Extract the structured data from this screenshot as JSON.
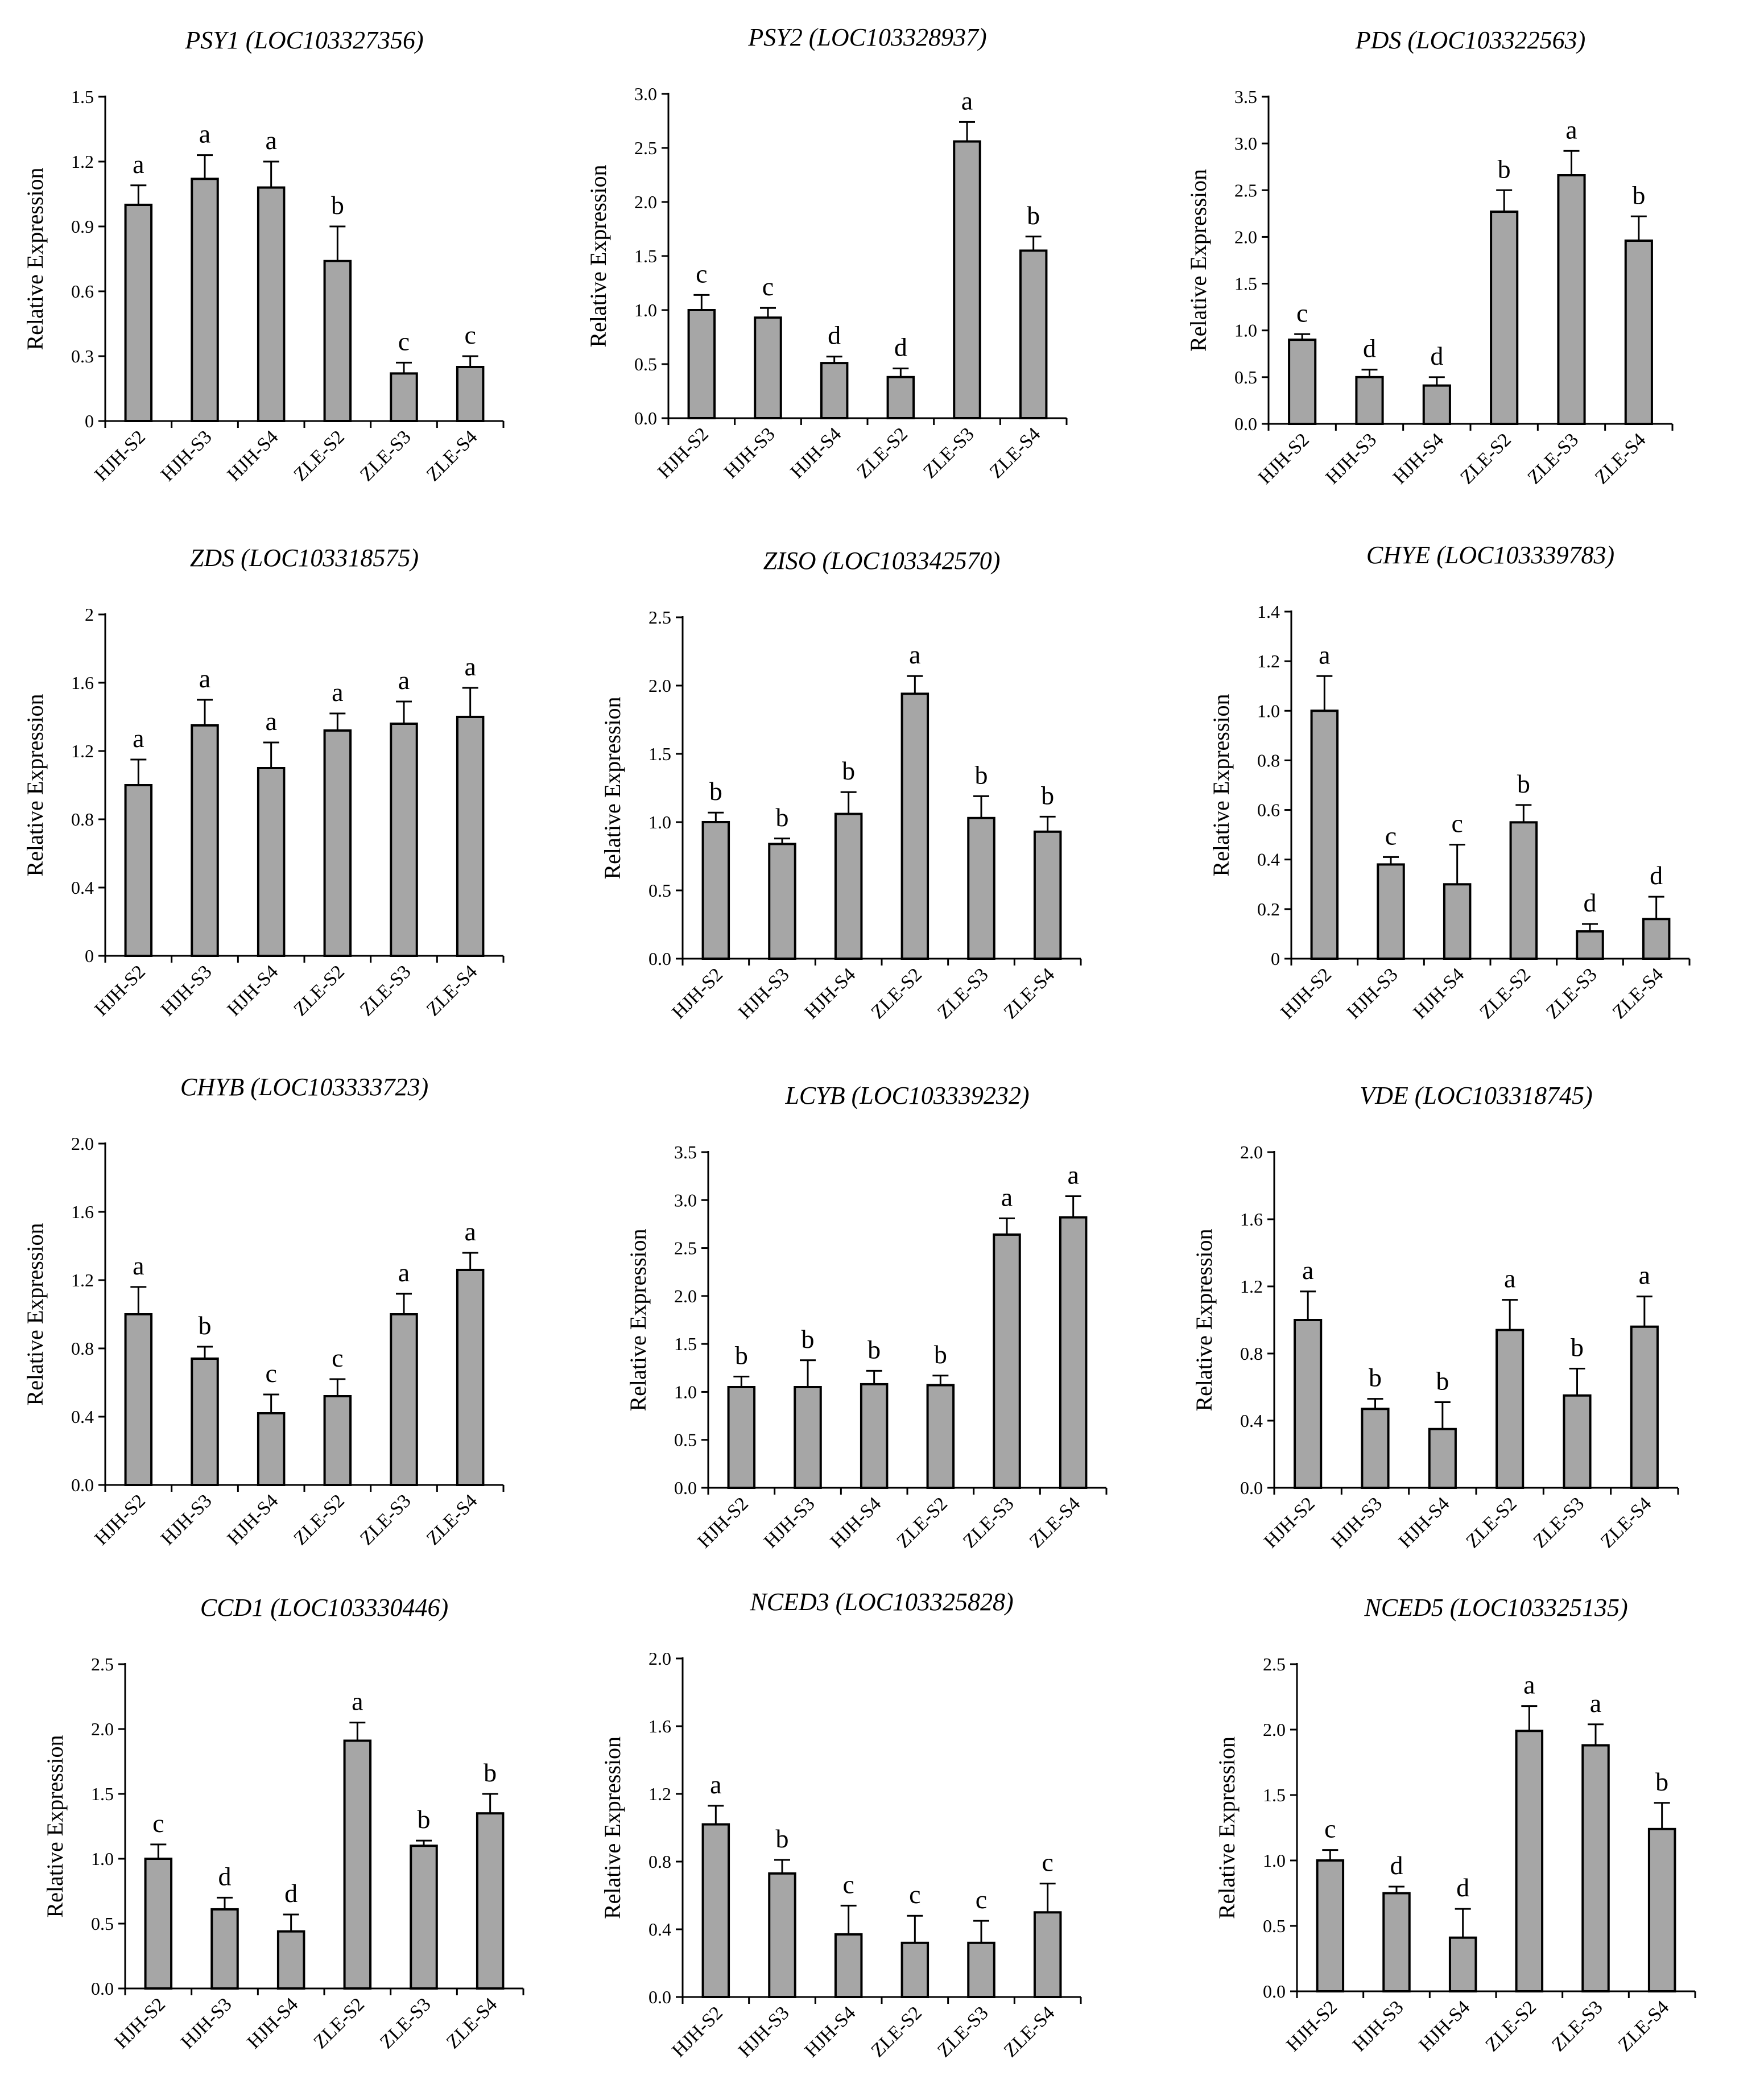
{
  "figure": {
    "background": "#ffffff",
    "bar_fill": "#a6a6a6",
    "stroke": "#000000"
  },
  "chart_data": [
    {
      "type": "bar",
      "title": "PSY1 (LOC103327356)",
      "ylabel": "Relative Expression",
      "ylim": [
        0,
        1.5
      ],
      "yticks": [
        "0",
        "0.3",
        "0.6",
        "0.9",
        "1.2",
        "1.5"
      ],
      "categories": [
        "HJH-S2",
        "HJH-S3",
        "HJH-S4",
        "ZLE-S2",
        "ZLE-S3",
        "ZLE-S4"
      ],
      "values": [
        1.0,
        1.12,
        1.08,
        0.74,
        0.22,
        0.25
      ],
      "errors": [
        0.09,
        0.11,
        0.12,
        0.16,
        0.05,
        0.05
      ],
      "letters": [
        "a",
        "a",
        "a",
        "b",
        "c",
        "c"
      ]
    },
    {
      "type": "bar",
      "title": "PSY2  (LOC103328937)",
      "ylabel": "Relative Expression",
      "ylim": [
        0,
        3.0
      ],
      "yticks": [
        "0.0",
        "0.5",
        "1.0",
        "1.5",
        "2.0",
        "2.5",
        "3.0"
      ],
      "categories": [
        "HJH-S2",
        "HJH-S3",
        "HJH-S4",
        "ZLE-S2",
        "ZLE-S3",
        "ZLE-S4"
      ],
      "values": [
        1.0,
        0.93,
        0.51,
        0.38,
        2.56,
        1.55
      ],
      "errors": [
        0.14,
        0.09,
        0.06,
        0.08,
        0.18,
        0.13
      ],
      "letters": [
        "c",
        "c",
        "d",
        "d",
        "a",
        "b"
      ]
    },
    {
      "type": "bar",
      "title": "PDS (LOC103322563)",
      "ylabel": "Relative Expression",
      "ylim": [
        0,
        3.5
      ],
      "yticks": [
        "0.0",
        "0.5",
        "1.0",
        "1.5",
        "2.0",
        "2.5",
        "3.0",
        "3.5"
      ],
      "categories": [
        "HJH-S2",
        "HJH-S3",
        "HJH-S4",
        "ZLE-S2",
        "ZLE-S3",
        "ZLE-S4"
      ],
      "values": [
        0.9,
        0.5,
        0.41,
        2.27,
        2.66,
        1.96
      ],
      "errors": [
        0.06,
        0.08,
        0.09,
        0.23,
        0.26,
        0.26
      ],
      "letters": [
        "c",
        "d",
        "d",
        "b",
        "a",
        "b"
      ]
    },
    {
      "type": "bar",
      "title": "ZDS (LOC103318575)",
      "ylabel": "Relative Expression",
      "ylim": [
        0,
        2
      ],
      "yticks": [
        "0",
        "0.4",
        "0.8",
        "1.2",
        "1.6",
        "2"
      ],
      "categories": [
        "HJH-S2",
        "HJH-S3",
        "HJH-S4",
        "ZLE-S2",
        "ZLE-S3",
        "ZLE-S4"
      ],
      "values": [
        1.0,
        1.35,
        1.1,
        1.32,
        1.36,
        1.4
      ],
      "errors": [
        0.15,
        0.15,
        0.15,
        0.1,
        0.13,
        0.17
      ],
      "letters": [
        "a",
        "a",
        "a",
        "a",
        "a",
        "a"
      ]
    },
    {
      "type": "bar",
      "title": "ZISO (LOC103342570)",
      "ylabel": "Relative Expression",
      "ylim": [
        0,
        2.5
      ],
      "yticks": [
        "0.0",
        "0.5",
        "1.0",
        "1.5",
        "2.0",
        "2.5"
      ],
      "categories": [
        "HJH-S2",
        "HJH-S3",
        "HJH-S4",
        "ZLE-S2",
        "ZLE-S3",
        "ZLE-S4"
      ],
      "values": [
        1.0,
        0.84,
        1.06,
        1.94,
        1.03,
        0.93
      ],
      "errors": [
        0.07,
        0.04,
        0.16,
        0.13,
        0.16,
        0.11
      ],
      "letters": [
        "b",
        "b",
        "b",
        "a",
        "b",
        "b"
      ]
    },
    {
      "type": "bar",
      "title": "CHYE (LOC103339783)",
      "ylabel": "Relative Expression",
      "ylim": [
        0,
        1.4
      ],
      "yticks": [
        "0",
        "0.2",
        "0.4",
        "0.6",
        "0.8",
        "1.0",
        "1.2",
        "1.4"
      ],
      "categories": [
        "HJH-S2",
        "HJH-S3",
        "HJH-S4",
        "ZLE-S2",
        "ZLE-S3",
        "ZLE-S4"
      ],
      "values": [
        1.0,
        0.38,
        0.3,
        0.55,
        0.11,
        0.16
      ],
      "errors": [
        0.14,
        0.03,
        0.16,
        0.07,
        0.03,
        0.09
      ],
      "letters": [
        "a",
        "c",
        "c",
        "b",
        "d",
        "d"
      ]
    },
    {
      "type": "bar",
      "title": "CHYB (LOC103333723)",
      "ylabel": "Relative Expression",
      "ylim": [
        0,
        2.0
      ],
      "yticks": [
        "0.0",
        "0.4",
        "0.8",
        "1.2",
        "1.6",
        "2.0"
      ],
      "categories": [
        "HJH-S2",
        "HJH-S3",
        "HJH-S4",
        "ZLE-S2",
        "ZLE-S3",
        "ZLE-S4"
      ],
      "values": [
        1.0,
        0.74,
        0.42,
        0.52,
        1.0,
        1.26
      ],
      "errors": [
        0.16,
        0.07,
        0.11,
        0.1,
        0.12,
        0.1
      ],
      "letters": [
        "a",
        "b",
        "c",
        "c",
        "a",
        "a"
      ]
    },
    {
      "type": "bar",
      "title": "LCYB (LOC103339232)",
      "ylabel": "Relative Expression",
      "ylim": [
        0,
        3.5
      ],
      "yticks": [
        "0.0",
        "0.5",
        "1.0",
        "1.5",
        "2.0",
        "2.5",
        "3.0",
        "3.5"
      ],
      "categories": [
        "HJH-S2",
        "HJH-S3",
        "HJH-S4",
        "ZLE-S2",
        "ZLE-S3",
        "ZLE-S4"
      ],
      "values": [
        1.05,
        1.05,
        1.08,
        1.07,
        2.64,
        2.82
      ],
      "errors": [
        0.11,
        0.28,
        0.14,
        0.1,
        0.17,
        0.22
      ],
      "letters": [
        "b",
        "b",
        "b",
        "b",
        "a",
        "a"
      ]
    },
    {
      "type": "bar",
      "title": "VDE (LOC103318745)",
      "ylabel": "Relative Expression",
      "ylim": [
        0,
        2.0
      ],
      "yticks": [
        "0.0",
        "0.4",
        "0.8",
        "1.2",
        "1.6",
        "2.0"
      ],
      "categories": [
        "HJH-S2",
        "HJH-S3",
        "HJH-S4",
        "ZLE-S2",
        "ZLE-S3",
        "ZLE-S4"
      ],
      "values": [
        1.0,
        0.47,
        0.35,
        0.94,
        0.55,
        0.96
      ],
      "errors": [
        0.17,
        0.06,
        0.16,
        0.18,
        0.16,
        0.18
      ],
      "letters": [
        "a",
        "b",
        "b",
        "a",
        "b",
        "a"
      ]
    },
    {
      "type": "bar",
      "title": "CCD1 (LOC103330446)",
      "ylabel": "Relative Expression",
      "ylim": [
        0,
        2.5
      ],
      "yticks": [
        "0.0",
        "0.5",
        "1.0",
        "1.5",
        "2.0",
        "2.5"
      ],
      "categories": [
        "HJH-S2",
        "HJH-S3",
        "HJH-S4",
        "ZLE-S2",
        "ZLE-S3",
        "ZLE-S4"
      ],
      "values": [
        1.0,
        0.61,
        0.44,
        1.91,
        1.1,
        1.35
      ],
      "errors": [
        0.11,
        0.09,
        0.13,
        0.14,
        0.04,
        0.15
      ],
      "letters": [
        "c",
        "d",
        "d",
        "a",
        "b",
        "b"
      ]
    },
    {
      "type": "bar",
      "title": "NCED3 (LOC103325828)",
      "ylabel": "Relative Expression",
      "ylim": [
        0,
        2.0
      ],
      "yticks": [
        "0.0",
        "0.4",
        "0.8",
        "1.2",
        "1.6",
        "2.0"
      ],
      "categories": [
        "HJH-S2",
        "HJH-S3",
        "HJH-S4",
        "ZLE-S2",
        "ZLE-S3",
        "ZLE-S4"
      ],
      "values": [
        1.02,
        0.73,
        0.37,
        0.32,
        0.32,
        0.5
      ],
      "errors": [
        0.11,
        0.08,
        0.17,
        0.16,
        0.13,
        0.17
      ],
      "letters": [
        "a",
        "b",
        "c",
        "c",
        "c",
        "c"
      ]
    },
    {
      "type": "bar",
      "title": "NCED5 (LOC103325135)",
      "ylabel": "Relative Expression",
      "ylim": [
        0,
        2.5
      ],
      "yticks": [
        "0.0",
        "0.5",
        "1.0",
        "1.5",
        "2.0",
        "2.5"
      ],
      "categories": [
        "HJH-S2",
        "HJH-S3",
        "HJH-S4",
        "ZLE-S2",
        "ZLE-S3",
        "ZLE-S4"
      ],
      "values": [
        1.0,
        0.75,
        0.41,
        1.99,
        1.88,
        1.24
      ],
      "errors": [
        0.08,
        0.05,
        0.22,
        0.19,
        0.16,
        0.2
      ],
      "letters": [
        "c",
        "d",
        "d",
        "a",
        "a",
        "b"
      ]
    }
  ]
}
